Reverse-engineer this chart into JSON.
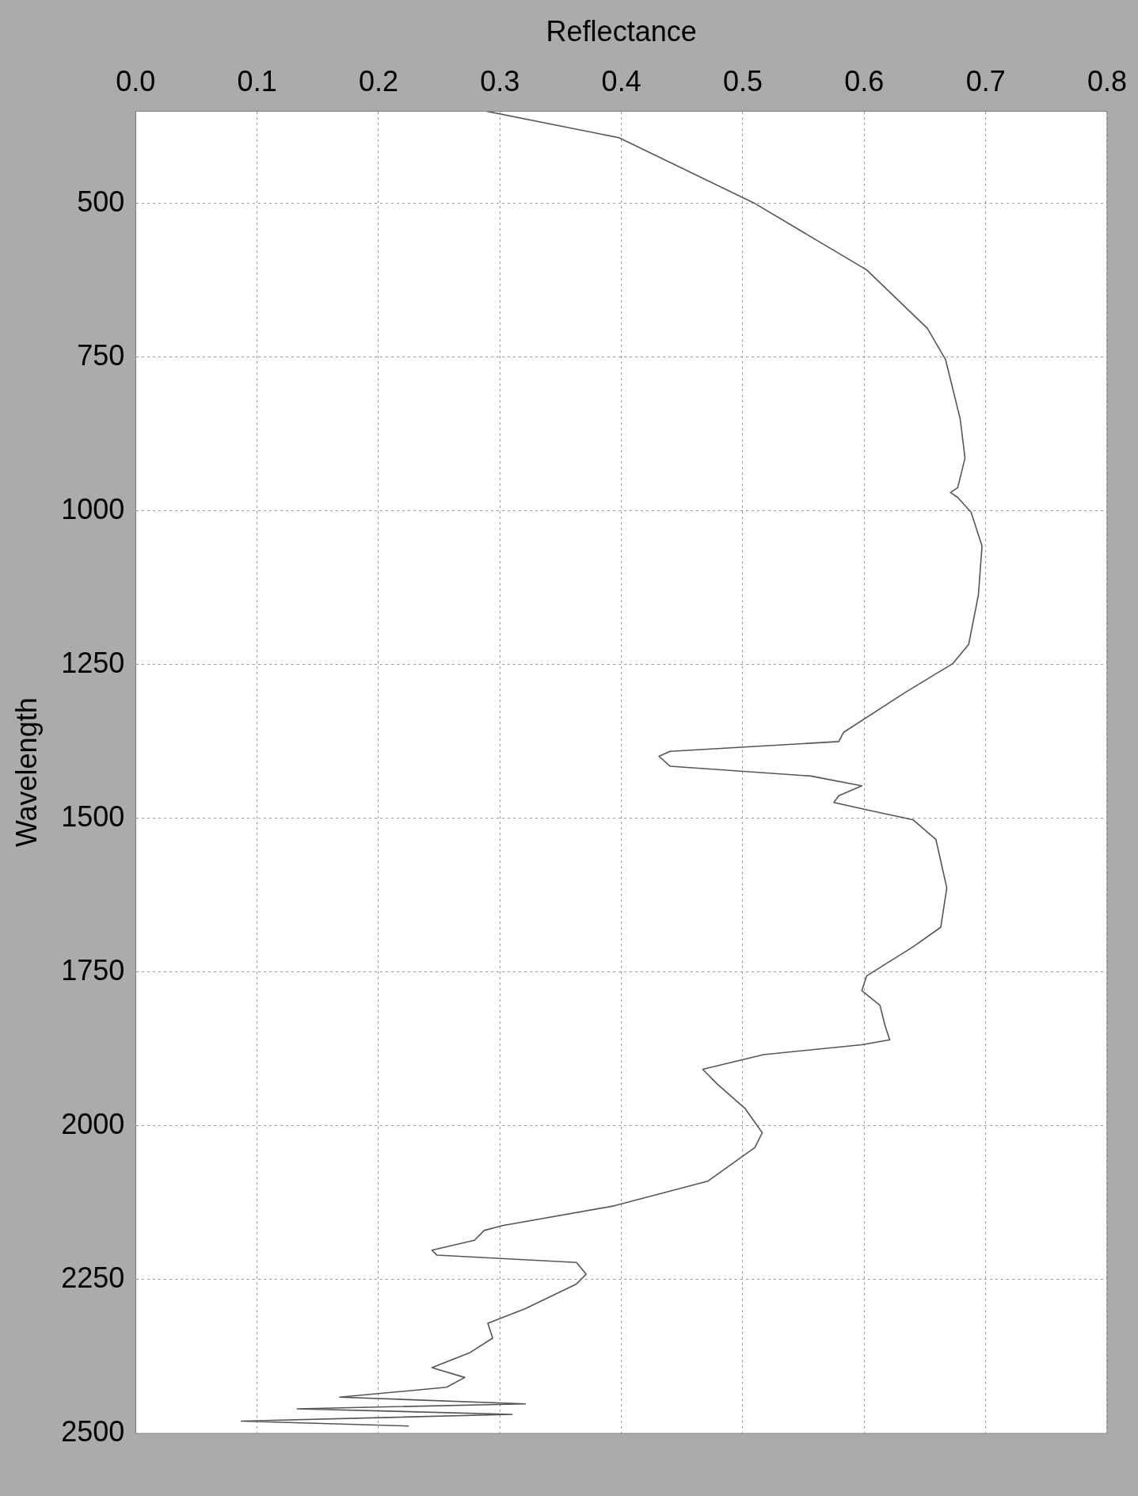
{
  "chart_data": {
    "type": "line",
    "xlabel": "Reflectance",
    "ylabel": "Wavelength",
    "xlim": [
      0,
      0.8
    ],
    "ylim": [
      2500,
      350
    ],
    "xticks": [
      {
        "value": 0,
        "label": "0.0"
      },
      0.1,
      0.2,
      0.3,
      0.4,
      0.5,
      0.6,
      0.7,
      0.8
    ],
    "yticks": [
      500,
      750,
      1000,
      1250,
      1500,
      1750,
      2000,
      2250,
      2500
    ],
    "grid": true,
    "legend": false,
    "marker": "none",
    "line_style": "solid",
    "series": [
      {
        "color": "#555555",
        "x": [
          0.289,
          0.398,
          0.51,
          0.602,
          0.652,
          0.667,
          0.679,
          0.683,
          0.677,
          0.671,
          0.677,
          0.688,
          0.697,
          0.694,
          0.686,
          0.673,
          0.633,
          0.583,
          0.579,
          0.44,
          0.431,
          0.44,
          0.556,
          0.598,
          0.579,
          0.575,
          0.602,
          0.64,
          0.659,
          0.668,
          0.663,
          0.64,
          0.602,
          0.598,
          0.613,
          0.617,
          0.621,
          0.598,
          0.517,
          0.467,
          0.479,
          0.502,
          0.516,
          0.51,
          0.471,
          0.394,
          0.302,
          0.287,
          0.279,
          0.244,
          0.248,
          0.363,
          0.371,
          0.363,
          0.321,
          0.29,
          0.294,
          0.275,
          0.244,
          0.271,
          0.256,
          0.168,
          0.321,
          0.133,
          0.31,
          0.087,
          0.225
        ],
        "values": [
          350,
          393,
          500,
          608,
          703,
          754,
          850,
          914,
          962,
          970,
          978,
          1002,
          1057,
          1137,
          1217,
          1248,
          1296,
          1360,
          1375,
          1391,
          1399,
          1415,
          1431,
          1447,
          1463,
          1474,
          1486,
          1502,
          1534,
          1613,
          1677,
          1709,
          1756,
          1780,
          1804,
          1836,
          1860,
          1868,
          1884,
          1908,
          1932,
          1972,
          2011,
          2035,
          2090,
          2130,
          2162,
          2170,
          2186,
          2202,
          2210,
          2222,
          2241,
          2257,
          2297,
          2321,
          2345,
          2369,
          2393,
          2409,
          2425,
          2441,
          2452,
          2460,
          2469,
          2480,
          2488
        ]
      }
    ]
  }
}
